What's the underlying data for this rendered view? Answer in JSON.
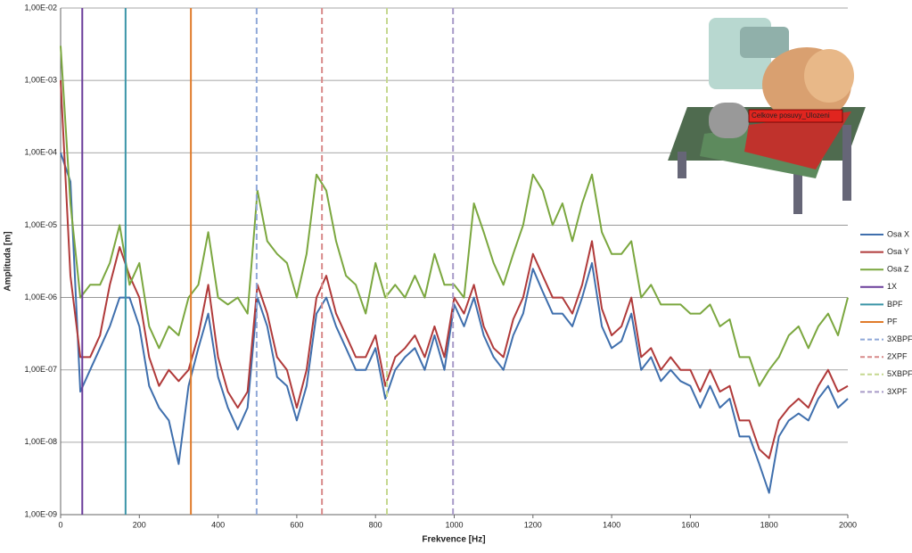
{
  "chart_data": {
    "type": "line",
    "xlabel": "Frekvence [Hz]",
    "ylabel": "Amplituda [m]",
    "annotation": "Celkove posuvy_Ulozeni",
    "xlim": [
      0,
      2000
    ],
    "xticks": [
      0,
      200,
      400,
      600,
      800,
      1000,
      1200,
      1400,
      1600,
      1800,
      2000
    ],
    "ylim": [
      1e-09,
      0.01
    ],
    "log_y": true,
    "grid": true,
    "legend": "right",
    "yticks": [
      {
        "value": 1e-09,
        "label": "1,00E-09"
      },
      {
        "value": 1e-08,
        "label": "1,00E-08"
      },
      {
        "value": 1e-07,
        "label": "1,00E-07"
      },
      {
        "value": 1e-06,
        "label": "1,00E-06"
      },
      {
        "value": 1e-05,
        "label": "1,00E-05"
      },
      {
        "value": 0.0001,
        "label": "1,00E-04"
      },
      {
        "value": 0.001,
        "label": "1,00E-03"
      },
      {
        "value": 0.01,
        "label": "1,00E-02"
      }
    ],
    "x": [
      0,
      25,
      50,
      75,
      100,
      125,
      150,
      175,
      200,
      225,
      250,
      275,
      300,
      325,
      350,
      375,
      400,
      425,
      450,
      475,
      500,
      525,
      550,
      575,
      600,
      625,
      650,
      675,
      700,
      725,
      750,
      775,
      800,
      825,
      850,
      875,
      900,
      925,
      950,
      975,
      1000,
      1025,
      1050,
      1075,
      1100,
      1125,
      1150,
      1175,
      1200,
      1225,
      1250,
      1275,
      1300,
      1325,
      1350,
      1375,
      1400,
      1425,
      1450,
      1475,
      1500,
      1525,
      1550,
      1575,
      1600,
      1625,
      1650,
      1675,
      1700,
      1725,
      1750,
      1775,
      1800,
      1825,
      1850,
      1875,
      1900,
      1925,
      1950,
      1975,
      2000
    ],
    "series": [
      {
        "name": "Osa X",
        "color": "#3f6fad",
        "values": [
          0.0001,
          4e-05,
          5e-08,
          1e-07,
          2e-07,
          4e-07,
          1e-06,
          1e-06,
          4e-07,
          6e-08,
          3e-08,
          2e-08,
          5e-09,
          6e-08,
          2e-07,
          6e-07,
          8e-08,
          3e-08,
          1.5e-08,
          3e-08,
          1e-06,
          4e-07,
          8e-08,
          6e-08,
          2e-08,
          6e-08,
          6e-07,
          1e-06,
          4e-07,
          2e-07,
          1e-07,
          1e-07,
          2e-07,
          4e-08,
          1e-07,
          1.5e-07,
          2e-07,
          1e-07,
          3e-07,
          1e-07,
          8e-07,
          4e-07,
          1e-06,
          3e-07,
          1.5e-07,
          1e-07,
          3e-07,
          6e-07,
          2.5e-06,
          1.2e-06,
          6e-07,
          6e-07,
          4e-07,
          1e-06,
          3e-06,
          4e-07,
          2e-07,
          2.5e-07,
          6e-07,
          1e-07,
          1.5e-07,
          7e-08,
          1e-07,
          7e-08,
          6e-08,
          3e-08,
          6e-08,
          3e-08,
          4e-08,
          1.2e-08,
          1.2e-08,
          5e-09,
          2e-09,
          1.2e-08,
          2e-08,
          2.5e-08,
          2e-08,
          4e-08,
          6e-08,
          3e-08,
          4e-08
        ]
      },
      {
        "name": "Osa Y",
        "color": "#b03a3a",
        "values": [
          0.001,
          2e-06,
          1.5e-07,
          1.5e-07,
          3e-07,
          1.5e-06,
          5e-06,
          2e-06,
          1e-06,
          1.5e-07,
          6e-08,
          1e-07,
          7e-08,
          1e-07,
          3e-07,
          1.5e-06,
          1.5e-07,
          5e-08,
          3e-08,
          5e-08,
          1.5e-06,
          6e-07,
          1.5e-07,
          1e-07,
          3e-08,
          1e-07,
          1e-06,
          2e-06,
          6e-07,
          3e-07,
          1.5e-07,
          1.5e-07,
          3e-07,
          6e-08,
          1.5e-07,
          2e-07,
          3e-07,
          1.5e-07,
          4e-07,
          1.5e-07,
          1e-06,
          6e-07,
          1.5e-06,
          4e-07,
          2e-07,
          1.5e-07,
          5e-07,
          1e-06,
          4e-06,
          2e-06,
          1e-06,
          1e-06,
          6e-07,
          1.5e-06,
          6e-06,
          7e-07,
          3e-07,
          4e-07,
          1e-06,
          1.5e-07,
          2e-07,
          1e-07,
          1.5e-07,
          1e-07,
          1e-07,
          5e-08,
          1e-07,
          5e-08,
          6e-08,
          2e-08,
          2e-08,
          8e-09,
          6e-09,
          2e-08,
          3e-08,
          4e-08,
          3e-08,
          6e-08,
          1e-07,
          5e-08,
          6e-08
        ]
      },
      {
        "name": "Osa Z",
        "color": "#7ba73f",
        "values": [
          0.003,
          2e-05,
          1e-06,
          1.5e-06,
          1.5e-06,
          3e-06,
          1e-05,
          1.5e-06,
          3e-06,
          4e-07,
          2e-07,
          4e-07,
          3e-07,
          1e-06,
          1.5e-06,
          8e-06,
          1e-06,
          8e-07,
          1e-06,
          6e-07,
          3e-05,
          6e-06,
          4e-06,
          3e-06,
          1e-06,
          4e-06,
          5e-05,
          3e-05,
          6e-06,
          2e-06,
          1.5e-06,
          6e-07,
          3e-06,
          1e-06,
          1.5e-06,
          1e-06,
          2e-06,
          1e-06,
          4e-06,
          1.5e-06,
          1.5e-06,
          1e-06,
          2e-05,
          8e-06,
          3e-06,
          1.5e-06,
          4e-06,
          1e-05,
          5e-05,
          3e-05,
          1e-05,
          2e-05,
          6e-06,
          2e-05,
          5e-05,
          8e-06,
          4e-06,
          4e-06,
          6e-06,
          1e-06,
          1.5e-06,
          8e-07,
          8e-07,
          8e-07,
          6e-07,
          6e-07,
          8e-07,
          4e-07,
          5e-07,
          1.5e-07,
          1.5e-07,
          6e-08,
          1e-07,
          1.5e-07,
          3e-07,
          4e-07,
          2e-07,
          4e-07,
          6e-07,
          3e-07,
          1e-06
        ]
      }
    ],
    "markers": [
      {
        "name": "1X",
        "x": 55,
        "color": "#6a3d9a",
        "dashed": false
      },
      {
        "name": "BPF",
        "x": 165,
        "color": "#3a95a8",
        "dashed": false
      },
      {
        "name": "PF",
        "x": 331,
        "color": "#e07b2a",
        "dashed": false
      },
      {
        "name": "3XBPF",
        "x": 498,
        "color": "#8fa8d8",
        "dashed": true
      },
      {
        "name": "2XPF",
        "x": 664,
        "color": "#d88a8a",
        "dashed": true
      },
      {
        "name": "5XBPF",
        "x": 829,
        "color": "#c5d88f",
        "dashed": true
      },
      {
        "name": "3XPF",
        "x": 997,
        "color": "#a89bc8",
        "dashed": true
      }
    ]
  }
}
